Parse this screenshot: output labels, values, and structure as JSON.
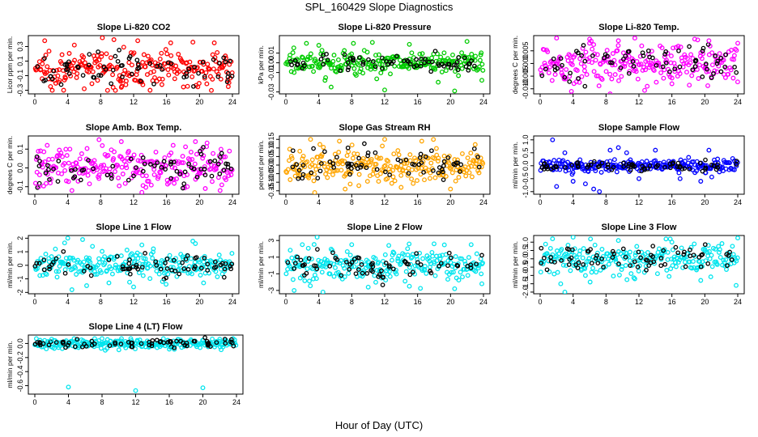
{
  "title": "SPL_160429  Slope Diagnostics",
  "xlabel": "Hour of Day (UTC)",
  "chart_data": [
    {
      "type": "scatter",
      "title": "Slope Li-820 CO2",
      "ylabel": "Licor ppm per min.",
      "color": "#ff0000",
      "xlim": [
        0,
        24
      ],
      "ylim": [
        -0.35,
        0.45
      ],
      "xticks": [
        0,
        4,
        8,
        12,
        16,
        20,
        24
      ],
      "yticks": [
        -0.3,
        -0.1,
        0.1,
        0.3
      ],
      "ytick_labels": [
        "-0.3",
        "-0.1",
        "0.1",
        "0.3"
      ],
      "spread": 0.12,
      "outliers": [
        [
          1.2,
          0.38
        ],
        [
          3.5,
          -0.3
        ],
        [
          4.8,
          0.32
        ],
        [
          8.2,
          0.42
        ],
        [
          12.5,
          0.38
        ],
        [
          14,
          -0.3
        ],
        [
          16.5,
          0.35
        ],
        [
          19.2,
          0.36
        ],
        [
          21.8,
          0.35
        ],
        [
          23.5,
          -0.25
        ],
        [
          6,
          -0.28
        ],
        [
          10.5,
          -0.26
        ]
      ]
    },
    {
      "type": "scatter",
      "title": "Slope Li-820 Pressure",
      "ylabel": "kPa per min.",
      "color": "#00cc00",
      "xlim": [
        0,
        24
      ],
      "ylim": [
        -0.032,
        0.028
      ],
      "xticks": [
        0,
        4,
        8,
        12,
        16,
        20,
        24
      ],
      "yticks": [
        -0.03,
        -0.01,
        0.0,
        0.01
      ],
      "ytick_labels": [
        "-0.03",
        "-0.01",
        "0.00",
        "0.01"
      ],
      "spread": 0.006,
      "outliers": [
        [
          1,
          -0.01
        ],
        [
          4,
          0.018
        ],
        [
          5.5,
          -0.025
        ],
        [
          8.2,
          0.02
        ],
        [
          12,
          -0.028
        ],
        [
          15,
          0.019
        ],
        [
          18.5,
          -0.02
        ],
        [
          20.5,
          -0.029
        ],
        [
          23.8,
          -0.018
        ],
        [
          2.5,
          0.02
        ],
        [
          10.5,
          0.021
        ],
        [
          22,
          0.022
        ]
      ]
    },
    {
      "type": "scatter",
      "title": "Slope Li-820 Temp.",
      "ylabel": "degrees C per min.",
      "color": "#ff00ff",
      "xlim": [
        0,
        24
      ],
      "ylim": [
        -0.012,
        0.011
      ],
      "xticks": [
        0,
        4,
        8,
        12,
        16,
        20,
        24
      ],
      "yticks": [
        -0.01,
        -0.005,
        0.0,
        0.005
      ],
      "ytick_labels": [
        "-0.010",
        "-0.005",
        "0.000",
        "0.005"
      ],
      "spread": 0.004,
      "outliers": [
        [
          2,
          0.01
        ],
        [
          3.8,
          -0.011
        ],
        [
          8.5,
          -0.012
        ],
        [
          9.5,
          0.009
        ],
        [
          11.5,
          0.01
        ],
        [
          16,
          -0.008
        ],
        [
          20.5,
          0.009
        ],
        [
          24,
          0.008
        ],
        [
          6,
          0.008
        ],
        [
          13,
          -0.009
        ]
      ]
    },
    {
      "type": "scatter",
      "title": "Slope Amb. Box Temp.",
      "ylabel": "degrees C per min.",
      "color": "#ff00ff",
      "xlim": [
        0,
        24
      ],
      "ylim": [
        -0.14,
        0.17
      ],
      "xticks": [
        0,
        4,
        8,
        12,
        16,
        20,
        24
      ],
      "yticks": [
        -0.1,
        0.0,
        0.1
      ],
      "ytick_labels": [
        "-0.1",
        "0.0",
        "0.1"
      ],
      "spread": 0.05,
      "outliers": [
        [
          1.5,
          0.12
        ],
        [
          4.5,
          -0.12
        ],
        [
          7.8,
          0.15
        ],
        [
          10.5,
          0.14
        ],
        [
          13,
          -0.13
        ],
        [
          16.8,
          0.12
        ],
        [
          19.5,
          0.14
        ],
        [
          22.5,
          -0.12
        ],
        [
          0.5,
          -0.1
        ]
      ]
    },
    {
      "type": "scatter",
      "title": "Slope Gas Stream RH",
      "ylabel": "percent per min.",
      "color": "#ffa500",
      "xlim": [
        0,
        24
      ],
      "ylim": [
        -0.17,
        0.17
      ],
      "xticks": [
        0,
        4,
        8,
        12,
        16,
        20,
        24
      ],
      "yticks": [
        -0.15,
        -0.1,
        -0.05,
        0.0,
        0.05,
        0.1,
        0.15
      ],
      "ytick_labels": [
        "-0.15",
        "-0.10",
        "-0.05",
        "0.00",
        "0.05",
        "0.10",
        "0.15"
      ],
      "spread": 0.05,
      "outliers": [
        [
          3,
          0.15
        ],
        [
          3.5,
          -0.16
        ],
        [
          6.5,
          0.14
        ],
        [
          7.2,
          -0.14
        ],
        [
          12,
          0.15
        ],
        [
          14,
          -0.13
        ],
        [
          16.5,
          0.14
        ],
        [
          23,
          0.12
        ],
        [
          20,
          -0.14
        ]
      ]
    },
    {
      "type": "scatter",
      "title": "Slope Sample Flow",
      "ylabel": "ml/min per min.",
      "color": "#0000ff",
      "xlim": [
        0,
        24
      ],
      "ylim": [
        -1.1,
        1.15
      ],
      "xticks": [
        0,
        4,
        8,
        12,
        16,
        20,
        24
      ],
      "yticks": [
        -1.0,
        -0.5,
        0.0,
        0.5,
        1.0
      ],
      "ytick_labels": [
        "-1.0",
        "-0.5",
        "0.0",
        "0.5",
        "1.0"
      ],
      "spread": 0.12,
      "outliers": [
        [
          1.5,
          1.0
        ],
        [
          2,
          -0.8
        ],
        [
          5.5,
          -0.7
        ],
        [
          6.5,
          -0.9
        ],
        [
          7.2,
          -1.0
        ],
        [
          8.5,
          0.6
        ],
        [
          9.5,
          0.7
        ],
        [
          12,
          -0.5
        ],
        [
          14,
          0.6
        ],
        [
          19.5,
          -0.6
        ],
        [
          20.5,
          0.6
        ],
        [
          3,
          0.5
        ],
        [
          4,
          -0.6
        ],
        [
          10.5,
          0.5
        ],
        [
          17,
          -0.5
        ]
      ]
    },
    {
      "type": "scatter",
      "title": "Slope Line 1 Flow",
      "ylabel": "ml/min per min.",
      "color": "#00e5ee",
      "xlim": [
        0,
        24
      ],
      "ylim": [
        -2.1,
        2.2
      ],
      "xticks": [
        0,
        4,
        8,
        12,
        16,
        20,
        24
      ],
      "yticks": [
        -2,
        -1,
        0,
        1,
        2
      ],
      "ytick_labels": [
        "-2",
        "-1",
        "0",
        "1",
        "2"
      ],
      "spread": 0.45,
      "outliers": [
        [
          4,
          2.0
        ],
        [
          4.5,
          -1.8
        ],
        [
          5.8,
          1.9
        ],
        [
          6.3,
          -1.5
        ],
        [
          7,
          1.4
        ],
        [
          12,
          -1.6
        ],
        [
          13,
          1.5
        ],
        [
          15.5,
          -1.2
        ],
        [
          19.5,
          1.6
        ],
        [
          20.5,
          -1.3
        ],
        [
          2.5,
          1.2
        ],
        [
          9,
          -1.3
        ]
      ]
    },
    {
      "type": "scatter",
      "title": "Slope Line 2 Flow",
      "ylabel": "ml/min per min.",
      "color": "#00e5ee",
      "xlim": [
        0,
        24
      ],
      "ylim": [
        -3.4,
        3.6
      ],
      "xticks": [
        0,
        4,
        8,
        12,
        16,
        20,
        24
      ],
      "yticks": [
        -3,
        -1,
        1,
        3
      ],
      "ytick_labels": [
        "-3",
        "-1",
        "1",
        "3"
      ],
      "spread": 0.9,
      "outliers": [
        [
          1,
          -3
        ],
        [
          2,
          2.5
        ],
        [
          3.8,
          3.4
        ],
        [
          4.5,
          -3.2
        ],
        [
          8,
          2.5
        ],
        [
          10,
          -2.6
        ],
        [
          12.5,
          2.4
        ],
        [
          15,
          -2.5
        ],
        [
          18,
          2.6
        ],
        [
          20.5,
          -2.8
        ],
        [
          22.5,
          2.5
        ],
        [
          23.8,
          -2.2
        ]
      ]
    },
    {
      "type": "scatter",
      "title": "Slope Line 3 Flow",
      "ylabel": "ml/min per min.",
      "color": "#00e5ee",
      "xlim": [
        0,
        24
      ],
      "ylim": [
        -2.1,
        1.4
      ],
      "xticks": [
        0,
        4,
        8,
        12,
        16,
        20,
        24
      ],
      "yticks": [
        -2.0,
        -1.5,
        -1.0,
        -0.5,
        0.0,
        0.5,
        1.0
      ],
      "ytick_labels": [
        "-2.0",
        "-1.5",
        "-1.0",
        "-0.5",
        "0.0",
        "0.5",
        "1.0"
      ],
      "spread": 0.45,
      "outliers": [
        [
          1.5,
          1.2
        ],
        [
          2.5,
          -1.5
        ],
        [
          3,
          -2.0
        ],
        [
          4,
          1.3
        ],
        [
          5.5,
          -1.0
        ],
        [
          9.5,
          1.1
        ],
        [
          11.5,
          -1.2
        ],
        [
          16,
          1.0
        ],
        [
          19.5,
          -1.3
        ],
        [
          24,
          1.25
        ],
        [
          23.8,
          -1.6
        ]
      ]
    },
    {
      "type": "scatter",
      "title": "Slope Line 4 (LT) Flow",
      "ylabel": "ml/min per min.",
      "color": "#00e5ee",
      "xlim": [
        0,
        24
      ],
      "ylim": [
        -0.72,
        0.12
      ],
      "xticks": [
        0,
        4,
        8,
        12,
        16,
        20,
        24
      ],
      "yticks": [
        -0.6,
        -0.4,
        -0.2,
        0.0
      ],
      "ytick_labels": [
        "-0.6",
        "-0.4",
        "-0.2",
        "0.0"
      ],
      "spread": 0.035,
      "outliers": [
        [
          4,
          -0.62
        ],
        [
          12,
          -0.67
        ],
        [
          20,
          -0.63
        ],
        [
          2,
          0.06
        ],
        [
          8,
          0.07
        ],
        [
          16,
          -0.08
        ],
        [
          22,
          0.06
        ],
        [
          10,
          -0.09
        ]
      ]
    }
  ]
}
